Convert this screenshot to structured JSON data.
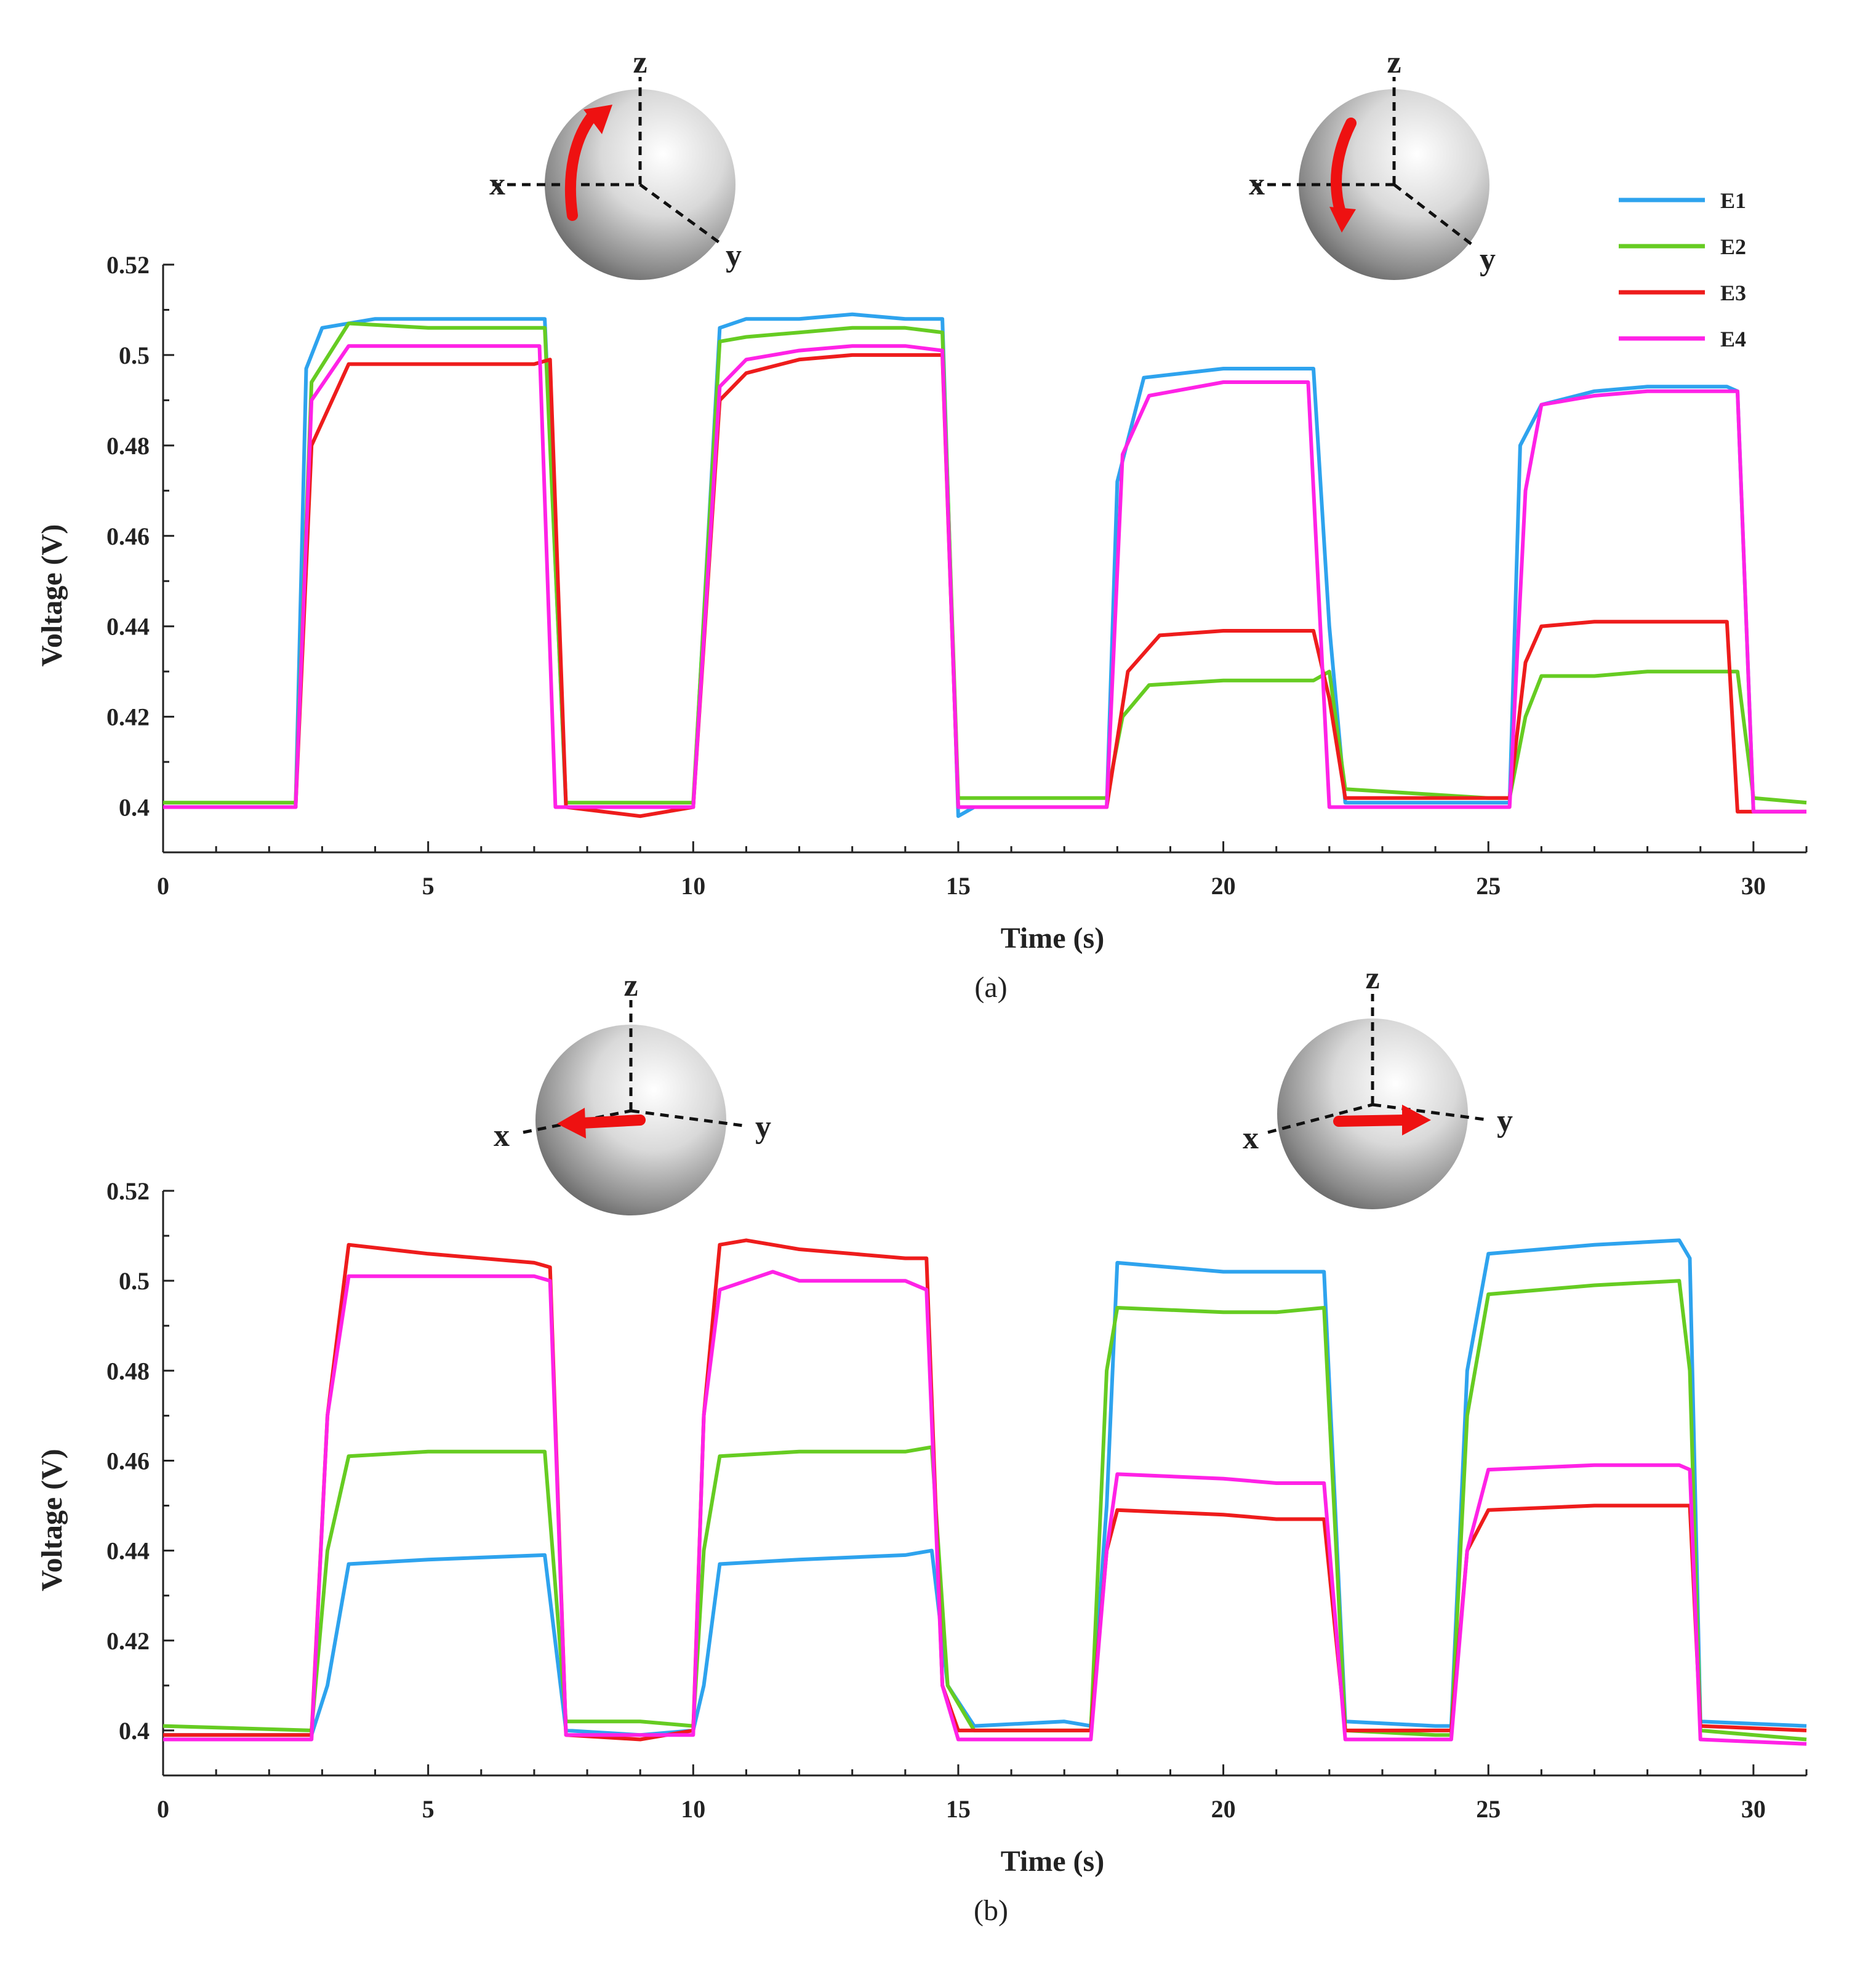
{
  "figure": {
    "legend": [
      {
        "key": "E1",
        "label": "E1",
        "color": "#2ea3ee"
      },
      {
        "key": "E2",
        "label": "E2",
        "color": "#66cc22"
      },
      {
        "key": "E3",
        "label": "E3",
        "color": "#ee1c1c"
      },
      {
        "key": "E4",
        "label": "E4",
        "color": "#ff22e6"
      }
    ],
    "icons": {
      "a": [
        {
          "name": "rotation-up-icon",
          "labels": [
            "x",
            "y",
            "z"
          ]
        },
        {
          "name": "rotation-down-icon",
          "labels": [
            "x",
            "y",
            "z"
          ]
        }
      ],
      "b": [
        {
          "name": "translation-negative-y-icon",
          "labels": [
            "x",
            "y",
            "z"
          ]
        },
        {
          "name": "translation-positive-y-icon",
          "labels": [
            "x",
            "y",
            "z"
          ]
        }
      ]
    }
  },
  "chart_data": [
    {
      "type": "line",
      "panel_label": "(a)",
      "xlabel": "Time (s)",
      "ylabel": "Voltage (V)",
      "xlim": [
        0,
        31
      ],
      "ylim": [
        0.39,
        0.52
      ],
      "xticks": [
        0,
        5,
        10,
        15,
        20,
        25,
        30
      ],
      "yticks": [
        0.4,
        0.42,
        0.44,
        0.46,
        0.48,
        0.5,
        0.52
      ],
      "ytick_labels": [
        "0.4",
        "0.42",
        "0.44",
        "0.46",
        "0.48",
        "0.5",
        "0.52"
      ],
      "series": [
        {
          "name": "E1",
          "color": "#2ea3ee",
          "x": [
            0,
            2.5,
            2.7,
            3,
            4,
            5,
            6,
            7.2,
            7.6,
            9,
            10,
            10.5,
            11,
            12,
            13,
            14,
            14.7,
            15,
            15.3,
            17,
            17.8,
            18,
            18.5,
            20,
            21,
            21.7,
            22,
            22.3,
            25,
            25.4,
            25.6,
            26,
            27,
            28,
            29.5,
            29.7,
            30,
            31
          ],
          "values": [
            0.4,
            0.4,
            0.497,
            0.506,
            0.508,
            0.508,
            0.508,
            0.508,
            0.4,
            0.4,
            0.4,
            0.506,
            0.508,
            0.508,
            0.509,
            0.508,
            0.508,
            0.398,
            0.4,
            0.4,
            0.4,
            0.472,
            0.495,
            0.497,
            0.497,
            0.497,
            0.44,
            0.401,
            0.401,
            0.401,
            0.48,
            0.489,
            0.492,
            0.493,
            0.493,
            0.492,
            0.399,
            0.399
          ]
        },
        {
          "name": "E2",
          "color": "#66cc22",
          "x": [
            0,
            2.5,
            2.8,
            3.5,
            5,
            7.2,
            7.6,
            9,
            10,
            10.5,
            11,
            12,
            13,
            14,
            14.7,
            15,
            15.3,
            17,
            17.8,
            18.1,
            18.6,
            20,
            21,
            21.7,
            22,
            22.3,
            25,
            25.4,
            25.7,
            26,
            27,
            28,
            29.5,
            29.7,
            30,
            31
          ],
          "values": [
            0.401,
            0.401,
            0.494,
            0.507,
            0.506,
            0.506,
            0.401,
            0.401,
            0.401,
            0.503,
            0.504,
            0.505,
            0.506,
            0.506,
            0.505,
            0.402,
            0.402,
            0.402,
            0.402,
            0.42,
            0.427,
            0.428,
            0.428,
            0.428,
            0.43,
            0.404,
            0.402,
            0.402,
            0.42,
            0.429,
            0.429,
            0.43,
            0.43,
            0.43,
            0.402,
            0.401
          ]
        },
        {
          "name": "E3",
          "color": "#ee1c1c",
          "x": [
            0,
            2.5,
            2.8,
            3.5,
            5,
            7,
            7.3,
            7.6,
            9,
            10,
            10.5,
            11,
            12,
            13,
            14,
            14.7,
            15,
            15.3,
            17,
            17.8,
            18.2,
            18.8,
            20,
            21,
            21.7,
            22,
            22.3,
            25,
            25.4,
            25.7,
            26,
            27,
            28,
            29.5,
            29.7,
            30,
            31
          ],
          "values": [
            0.4,
            0.4,
            0.48,
            0.498,
            0.498,
            0.498,
            0.499,
            0.4,
            0.398,
            0.4,
            0.49,
            0.496,
            0.499,
            0.5,
            0.5,
            0.5,
            0.4,
            0.4,
            0.4,
            0.4,
            0.43,
            0.438,
            0.439,
            0.439,
            0.439,
            0.424,
            0.402,
            0.402,
            0.402,
            0.432,
            0.44,
            0.441,
            0.441,
            0.441,
            0.399,
            0.399,
            0.399
          ]
        },
        {
          "name": "E4",
          "color": "#ff22e6",
          "x": [
            0,
            2.5,
            2.8,
            3.5,
            5,
            7.1,
            7.4,
            9,
            10,
            10.5,
            11,
            12,
            13,
            14,
            14.7,
            15,
            15.3,
            17,
            17.8,
            18.1,
            18.6,
            20,
            21,
            21.6,
            22,
            22.3,
            25,
            25.4,
            25.7,
            26,
            27,
            28,
            29.5,
            29.7,
            30,
            31
          ],
          "values": [
            0.4,
            0.4,
            0.49,
            0.502,
            0.502,
            0.502,
            0.4,
            0.4,
            0.4,
            0.493,
            0.499,
            0.501,
            0.502,
            0.502,
            0.501,
            0.4,
            0.4,
            0.4,
            0.4,
            0.478,
            0.491,
            0.494,
            0.494,
            0.494,
            0.4,
            0.4,
            0.4,
            0.4,
            0.47,
            0.489,
            0.491,
            0.492,
            0.492,
            0.492,
            0.399,
            0.399
          ]
        }
      ]
    },
    {
      "type": "line",
      "panel_label": "(b)",
      "xlabel": "Time (s)",
      "ylabel": "Voltage (V)",
      "xlim": [
        0,
        31
      ],
      "ylim": [
        0.39,
        0.52
      ],
      "xticks": [
        0,
        5,
        10,
        15,
        20,
        25,
        30
      ],
      "yticks": [
        0.4,
        0.42,
        0.44,
        0.46,
        0.48,
        0.5,
        0.52
      ],
      "ytick_labels": [
        "0.4",
        "0.42",
        "0.44",
        "0.46",
        "0.48",
        "0.5",
        "0.52"
      ],
      "series": [
        {
          "name": "E1",
          "color": "#2ea3ee",
          "x": [
            0,
            2.8,
            3.1,
            3.5,
            5,
            7.2,
            7.6,
            9,
            10,
            10.2,
            10.5,
            12,
            14,
            14.5,
            14.8,
            15.3,
            17,
            17.5,
            17.8,
            18,
            20,
            21,
            21.9,
            22.3,
            24,
            24.3,
            24.6,
            25,
            27,
            28.6,
            28.8,
            29,
            31
          ],
          "values": [
            0.399,
            0.399,
            0.41,
            0.437,
            0.438,
            0.439,
            0.4,
            0.399,
            0.4,
            0.41,
            0.437,
            0.438,
            0.439,
            0.44,
            0.41,
            0.401,
            0.402,
            0.401,
            0.45,
            0.504,
            0.502,
            0.502,
            0.502,
            0.402,
            0.401,
            0.401,
            0.48,
            0.506,
            0.508,
            0.509,
            0.505,
            0.402,
            0.401
          ]
        },
        {
          "name": "E2",
          "color": "#66cc22",
          "x": [
            0,
            2.8,
            3.1,
            3.5,
            5,
            7.2,
            7.6,
            9,
            10,
            10.2,
            10.5,
            12,
            14,
            14.5,
            14.8,
            15.3,
            17,
            17.5,
            17.8,
            18,
            20,
            21,
            21.9,
            22.3,
            24,
            24.3,
            24.6,
            25,
            27,
            28.6,
            28.8,
            29,
            31
          ],
          "values": [
            0.401,
            0.4,
            0.44,
            0.461,
            0.462,
            0.462,
            0.402,
            0.402,
            0.401,
            0.44,
            0.461,
            0.462,
            0.462,
            0.463,
            0.41,
            0.4,
            0.4,
            0.4,
            0.48,
            0.494,
            0.493,
            0.493,
            0.494,
            0.4,
            0.399,
            0.399,
            0.47,
            0.497,
            0.499,
            0.5,
            0.48,
            0.4,
            0.398
          ]
        },
        {
          "name": "E3",
          "color": "#ee1c1c",
          "x": [
            0,
            2.8,
            3.1,
            3.5,
            5,
            7,
            7.3,
            7.6,
            9,
            10,
            10.2,
            10.5,
            11,
            12,
            13,
            14,
            14.4,
            14.7,
            15,
            17,
            17.5,
            17.8,
            18,
            20,
            21,
            21.9,
            22.3,
            24,
            24.3,
            24.6,
            25,
            27,
            28.6,
            28.8,
            29,
            31
          ],
          "values": [
            0.399,
            0.399,
            0.47,
            0.508,
            0.506,
            0.504,
            0.503,
            0.399,
            0.398,
            0.4,
            0.47,
            0.508,
            0.509,
            0.507,
            0.506,
            0.505,
            0.505,
            0.41,
            0.4,
            0.4,
            0.4,
            0.44,
            0.449,
            0.448,
            0.447,
            0.447,
            0.4,
            0.4,
            0.4,
            0.44,
            0.449,
            0.45,
            0.45,
            0.45,
            0.401,
            0.4
          ]
        },
        {
          "name": "E4",
          "color": "#ff22e6",
          "x": [
            0,
            2.8,
            3.1,
            3.5,
            5,
            7,
            7.3,
            7.6,
            9,
            10,
            10.2,
            10.5,
            11,
            11.5,
            12,
            13,
            14,
            14.4,
            14.7,
            15,
            17,
            17.5,
            17.8,
            18,
            20,
            21,
            21.9,
            22.3,
            24,
            24.3,
            24.6,
            25,
            27,
            28.6,
            28.8,
            29,
            31
          ],
          "values": [
            0.398,
            0.398,
            0.47,
            0.501,
            0.501,
            0.501,
            0.5,
            0.399,
            0.399,
            0.399,
            0.47,
            0.498,
            0.5,
            0.502,
            0.5,
            0.5,
            0.5,
            0.498,
            0.41,
            0.398,
            0.398,
            0.398,
            0.44,
            0.457,
            0.456,
            0.455,
            0.455,
            0.398,
            0.398,
            0.398,
            0.44,
            0.458,
            0.459,
            0.459,
            0.458,
            0.398,
            0.397
          ]
        }
      ]
    }
  ]
}
